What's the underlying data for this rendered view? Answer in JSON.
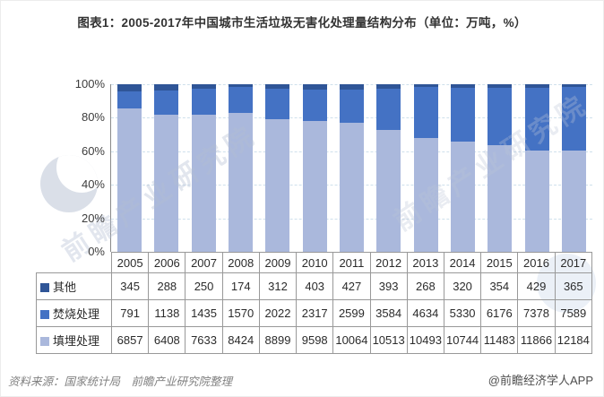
{
  "title": "图表1：2005-2017年中国城市生活垃圾无害化处理量结构分布（单位：万吨，%）",
  "chart_data": {
    "type": "bar",
    "stacked": true,
    "normalized_to_percent": true,
    "unit": "万吨，%",
    "categories": [
      "2005",
      "2006",
      "2007",
      "2008",
      "2009",
      "2010",
      "2011",
      "2012",
      "2013",
      "2014",
      "2015",
      "2016",
      "2017"
    ],
    "series": [
      {
        "key": "other",
        "name": "其他",
        "color": "#2F5597",
        "values": [
          345,
          288,
          250,
          174,
          312,
          403,
          427,
          393,
          268,
          320,
          354,
          429,
          365
        ]
      },
      {
        "key": "incineration",
        "name": "焚烧处理",
        "color": "#4472C4",
        "values": [
          791,
          1138,
          1435,
          1570,
          2022,
          2317,
          2599,
          3584,
          4634,
          5330,
          6176,
          7378,
          7589
        ]
      },
      {
        "key": "landfill",
        "name": "填埋处理",
        "color": "#AAB8DC",
        "values": [
          6857,
          6408,
          7633,
          8424,
          8899,
          9598,
          10064,
          10513,
          10493,
          10744,
          11483,
          11866,
          12184
        ]
      }
    ],
    "y_axis": {
      "tick_values": [
        0,
        20,
        40,
        60,
        80,
        100
      ],
      "tick_labels": [
        "0%",
        "20%",
        "40%",
        "60%",
        "80%",
        "100%"
      ],
      "min": 0,
      "max": 100,
      "grid": "dashed"
    },
    "legend_position": "table-left"
  },
  "footer": {
    "source": "资料来源：国家统计局　前瞻产业研究院整理",
    "brand": "@前瞻经济学人APP"
  },
  "watermark": {
    "text": "前瞻产业研究院"
  }
}
